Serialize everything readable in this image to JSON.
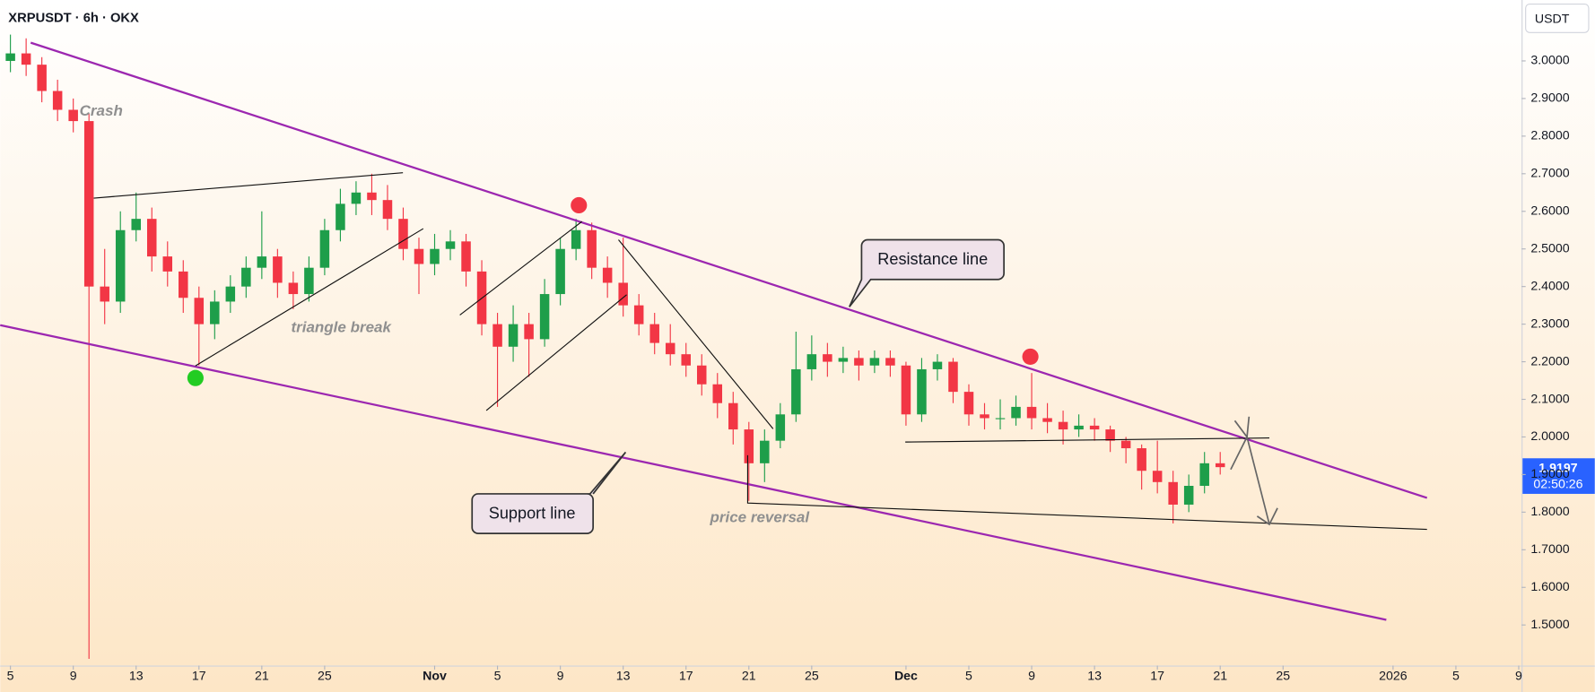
{
  "chart_data": {
    "type": "candlestick",
    "title": "XRPUSDT · 6h · OKX",
    "currency": "USDT",
    "countdown": "02:50:26",
    "annotations": [
      "Crash",
      "triangle break",
      "price reversal",
      "Resistance line",
      "Support line"
    ],
    "up_color": "#1e9e4a",
    "down_color": "#f23645",
    "x": [
      0,
      1,
      2,
      3,
      4,
      5,
      6,
      7,
      8,
      9,
      10,
      11,
      12,
      13,
      14,
      15,
      16,
      17,
      18,
      19,
      20,
      21,
      22,
      23,
      24,
      25,
      26,
      27,
      28,
      29,
      30,
      31,
      32,
      33,
      34,
      35,
      36,
      37,
      38,
      39,
      40,
      41,
      42,
      43,
      44,
      45,
      46,
      47,
      48,
      49,
      50,
      51,
      52,
      53,
      54,
      55,
      56,
      57,
      58,
      59,
      60,
      61,
      62,
      63,
      64,
      65,
      66,
      67,
      68,
      69,
      70,
      71,
      72,
      73,
      74,
      75,
      76,
      77
    ],
    "open": [
      3.0,
      3.02,
      2.99,
      2.92,
      2.87,
      2.84,
      2.4,
      2.36,
      2.55,
      2.58,
      2.48,
      2.44,
      2.37,
      2.3,
      2.36,
      2.4,
      2.45,
      2.48,
      2.41,
      2.38,
      2.45,
      2.55,
      2.62,
      2.65,
      2.63,
      2.58,
      2.5,
      2.46,
      2.5,
      2.52,
      2.44,
      2.3,
      2.24,
      2.3,
      2.26,
      2.38,
      2.5,
      2.55,
      2.45,
      2.41,
      2.35,
      2.3,
      2.25,
      2.22,
      2.19,
      2.14,
      2.09,
      2.02,
      1.93,
      1.99,
      2.06,
      2.18,
      2.22,
      2.2,
      2.21,
      2.19,
      2.21,
      2.19,
      2.06,
      2.18,
      2.2,
      2.12,
      2.06,
      2.05,
      2.05,
      2.08,
      2.05,
      2.04,
      2.02,
      2.03,
      2.02,
      1.99,
      1.97,
      1.91,
      1.88,
      1.82,
      1.87,
      1.93
    ],
    "high": [
      3.07,
      3.06,
      3.01,
      2.95,
      2.9,
      2.86,
      2.5,
      2.6,
      2.65,
      2.61,
      2.52,
      2.47,
      2.4,
      2.39,
      2.43,
      2.48,
      2.6,
      2.5,
      2.44,
      2.48,
      2.58,
      2.66,
      2.68,
      2.7,
      2.67,
      2.61,
      2.53,
      2.54,
      2.55,
      2.54,
      2.47,
      2.33,
      2.35,
      2.33,
      2.42,
      2.53,
      2.58,
      2.57,
      2.48,
      2.53,
      2.38,
      2.33,
      2.3,
      2.25,
      2.22,
      2.17,
      2.12,
      2.04,
      2.02,
      2.09,
      2.28,
      2.27,
      2.25,
      2.24,
      2.23,
      2.23,
      2.23,
      2.2,
      2.21,
      2.22,
      2.21,
      2.14,
      2.09,
      2.1,
      2.11,
      2.17,
      2.09,
      2.07,
      2.06,
      2.05,
      2.03,
      2.0,
      1.98,
      1.99,
      1.91,
      1.9,
      1.96,
      1.96
    ],
    "low": [
      2.97,
      2.96,
      2.89,
      2.84,
      2.81,
      1.41,
      2.3,
      2.33,
      2.52,
      2.44,
      2.4,
      2.33,
      2.19,
      2.26,
      2.33,
      2.37,
      2.42,
      2.37,
      2.34,
      2.36,
      2.43,
      2.52,
      2.59,
      2.59,
      2.55,
      2.47,
      2.38,
      2.43,
      2.47,
      2.4,
      2.27,
      2.08,
      2.2,
      2.16,
      2.24,
      2.35,
      2.47,
      2.42,
      2.37,
      2.32,
      2.27,
      2.22,
      2.19,
      2.16,
      2.11,
      2.05,
      1.98,
      1.83,
      1.88,
      1.97,
      2.04,
      2.15,
      2.16,
      2.17,
      2.15,
      2.17,
      2.16,
      2.03,
      2.04,
      2.15,
      2.09,
      2.03,
      2.02,
      2.02,
      2.03,
      2.02,
      2.01,
      1.98,
      2.0,
      1.99,
      1.96,
      1.93,
      1.86,
      1.85,
      1.77,
      1.8,
      1.85,
      1.9
    ],
    "close": [
      3.02,
      2.99,
      2.92,
      2.87,
      2.84,
      2.4,
      2.36,
      2.55,
      2.58,
      2.48,
      2.44,
      2.37,
      2.3,
      2.36,
      2.4,
      2.45,
      2.48,
      2.41,
      2.38,
      2.45,
      2.55,
      2.62,
      2.65,
      2.63,
      2.58,
      2.5,
      2.46,
      2.5,
      2.52,
      2.44,
      2.3,
      2.24,
      2.3,
      2.26,
      2.38,
      2.5,
      2.55,
      2.45,
      2.41,
      2.35,
      2.3,
      2.25,
      2.22,
      2.19,
      2.14,
      2.09,
      2.02,
      1.93,
      1.99,
      2.06,
      2.18,
      2.22,
      2.2,
      2.21,
      2.19,
      2.21,
      2.19,
      2.06,
      2.18,
      2.2,
      2.12,
      2.06,
      2.05,
      2.05,
      2.08,
      2.05,
      2.04,
      2.02,
      2.03,
      2.02,
      1.99,
      1.97,
      1.91,
      1.88,
      1.82,
      1.87,
      1.93,
      1.9197
    ],
    "xlim": [
      -0.65,
      96.18
    ],
    "xticks": [
      {
        "value": 0,
        "label": "5"
      },
      {
        "value": 4,
        "label": "9"
      },
      {
        "value": 8,
        "label": "13"
      },
      {
        "value": 12,
        "label": "17"
      },
      {
        "value": 16,
        "label": "21"
      },
      {
        "value": 20,
        "label": "25"
      },
      {
        "value": 27,
        "label": "Nov"
      },
      {
        "value": 31,
        "label": "5"
      },
      {
        "value": 35,
        "label": "9"
      },
      {
        "value": 39,
        "label": "13"
      },
      {
        "value": 43,
        "label": "17"
      },
      {
        "value": 47,
        "label": "21"
      },
      {
        "value": 51,
        "label": "25"
      },
      {
        "value": 57,
        "label": "Dec"
      },
      {
        "value": 61,
        "label": "5"
      },
      {
        "value": 65,
        "label": "9"
      },
      {
        "value": 69,
        "label": "13"
      },
      {
        "value": 73,
        "label": "17"
      },
      {
        "value": 77,
        "label": "21"
      },
      {
        "value": 81,
        "label": "25"
      },
      {
        "value": 88,
        "label": "2026"
      },
      {
        "value": 92,
        "label": "5"
      },
      {
        "value": 96,
        "label": "9"
      }
    ],
    "ylim": [
      1.392,
      3.162
    ],
    "yticks": [
      {
        "value": 1.5,
        "label": "1.5000"
      },
      {
        "value": 1.6,
        "label": "1.6000"
      },
      {
        "value": 1.7,
        "label": "1.7000"
      },
      {
        "value": 1.8,
        "label": "1.8000"
      },
      {
        "value": 1.9,
        "label": "1.9000"
      },
      {
        "value": 2.0,
        "label": "2.0000"
      },
      {
        "value": 2.1,
        "label": "2.1000"
      },
      {
        "value": 2.2,
        "label": "2.2000"
      },
      {
        "value": 2.3,
        "label": "2.3000"
      },
      {
        "value": 2.4,
        "label": "2.4000"
      },
      {
        "value": 2.5,
        "label": "2.5000"
      },
      {
        "value": 2.6,
        "label": "2.6000"
      },
      {
        "value": 2.7,
        "label": "2.7000"
      },
      {
        "value": 2.8,
        "label": "2.8000"
      },
      {
        "value": 2.9,
        "label": "2.9000"
      },
      {
        "value": 3.0,
        "label": "3.0000"
      }
    ],
    "grid": false
  }
}
